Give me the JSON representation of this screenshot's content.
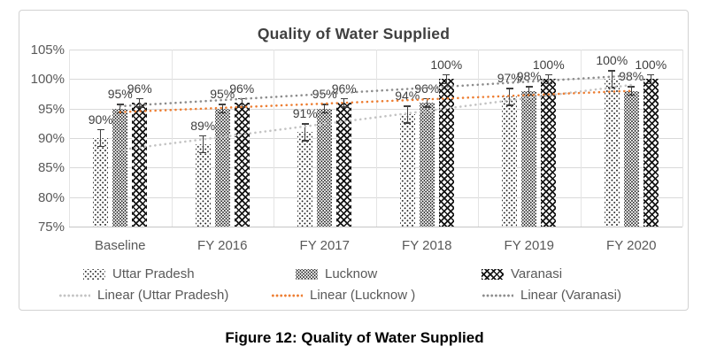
{
  "chart_data": {
    "type": "bar",
    "title": "Quality of Water Supplied",
    "categories": [
      "Baseline",
      "FY 2016",
      "FY 2017",
      "FY 2018",
      "FY 2019",
      "FY 2020"
    ],
    "series": [
      {
        "name": "Uttar Pradesh",
        "values": [
          90,
          89,
          91,
          94,
          97,
          100
        ],
        "pattern": "dots-sparse",
        "error": 1.5
      },
      {
        "name": "Lucknow",
        "values": [
          95,
          95,
          95,
          96,
          98,
          98
        ],
        "pattern": "dots-dense",
        "error": 0.8
      },
      {
        "name": "Varanasi",
        "values": [
          96,
          96,
          96,
          100,
          100,
          100
        ],
        "pattern": "diamond-crosshatch",
        "error": 0.8
      }
    ],
    "data_label_suffix": "%",
    "trendlines": [
      {
        "name": "Linear (Uttar Pradesh)",
        "color": "#c3c3c3",
        "start": 88,
        "end": 99
      },
      {
        "name": "Linear (Lucknow )",
        "color": "#ED7D31",
        "start": 94.4,
        "end": 98
      },
      {
        "name": "Linear (Varanasi)",
        "color": "#8c8c8c",
        "start": 95.4,
        "end": 100.6
      }
    ],
    "y_axis": {
      "min": 75,
      "max": 105,
      "step": 5,
      "ticks": [
        "105%",
        "100%",
        "95%",
        "90%",
        "85%",
        "80%",
        "75%"
      ]
    },
    "grid": true,
    "legend_position": "bottom"
  },
  "caption": "Figure 12: Quality of Water Supplied"
}
